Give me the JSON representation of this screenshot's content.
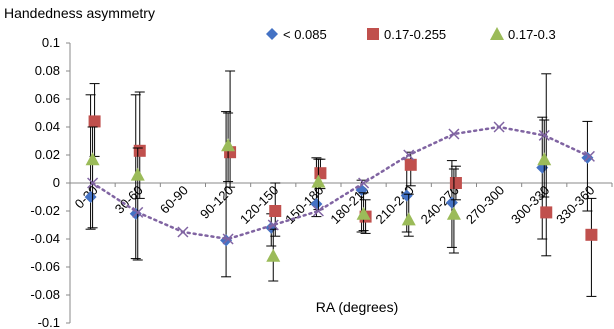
{
  "chart_data": {
    "type": "scatter",
    "title": "",
    "ylabel": "Handedness asymmetry",
    "xlabel": "RA (degrees)",
    "categories": [
      "0-30",
      "30-60",
      "60-90",
      "90-120",
      "120-150",
      "150-180",
      "180-210",
      "210-240",
      "240-270",
      "270-300",
      "300-330",
      "330-360"
    ],
    "ylim": [
      -0.1,
      0.1
    ],
    "yticks": [
      "0.1",
      "0.08",
      "0.06",
      "0.04",
      "0.02",
      "0",
      "-0.02",
      "-0.04",
      "-0.06",
      "-0.08",
      "-0.1"
    ],
    "ytick_values": [
      0.1,
      0.08,
      0.06,
      0.04,
      0.02,
      0,
      -0.02,
      -0.04,
      -0.06,
      -0.08,
      -0.1
    ],
    "grid": false,
    "legend_position": "top",
    "series": [
      {
        "name": "< 0.085",
        "marker": "diamond",
        "color": "#4472C4",
        "values": [
          -0.01,
          -0.022,
          null,
          -0.041,
          -0.032,
          -0.015,
          -0.005,
          -0.009,
          -0.014,
          null,
          0.011,
          0.018
        ],
        "err_low": [
          -0.033,
          -0.054,
          null,
          -0.067,
          -0.045,
          -0.024,
          -0.035,
          -0.035,
          -0.046,
          null,
          -0.04,
          -0.02
        ],
        "err_high": [
          0.063,
          0.063,
          null,
          0.051,
          -0.022,
          0.018,
          0.002,
          0.017,
          0.016,
          null,
          0.047,
          0.044
        ]
      },
      {
        "name": "0.17-0.255",
        "marker": "square",
        "color": "#C0504D",
        "values": [
          0.044,
          0.023,
          null,
          0.022,
          -0.02,
          0.007,
          -0.024,
          0.013,
          0.0,
          null,
          -0.021,
          -0.037
        ],
        "err_low": [
          0.019,
          -0.011,
          null,
          -0.003,
          -0.038,
          -0.004,
          -0.036,
          -0.002,
          -0.012,
          null,
          -0.052,
          -0.081
        ],
        "err_high": [
          0.071,
          0.065,
          null,
          0.08,
          0.0,
          0.017,
          -0.012,
          0.022,
          0.012,
          null,
          0.078,
          -0.011
        ]
      },
      {
        "name": "0.17-0.3",
        "marker": "triangle",
        "color": "#9BBB59",
        "values": [
          0.017,
          0.006,
          null,
          0.027,
          -0.052,
          0.001,
          -0.022,
          -0.026,
          -0.022,
          null,
          0.017,
          null
        ],
        "err_low": [
          -0.032,
          -0.055,
          null,
          0.001,
          -0.07,
          -0.019,
          -0.034,
          -0.038,
          -0.05,
          null,
          -0.01,
          null
        ],
        "err_high": [
          0.04,
          0.025,
          null,
          0.05,
          -0.033,
          0.017,
          -0.007,
          -0.008,
          0.01,
          null,
          0.045,
          null
        ]
      },
      {
        "name": "",
        "marker": "x",
        "color": "#8064A2",
        "dotted_line": true,
        "values": [
          0.0,
          -0.021,
          -0.035,
          -0.04,
          -0.03,
          -0.02,
          0.0,
          0.02,
          0.035,
          0.04,
          0.034,
          0.019
        ]
      }
    ]
  }
}
